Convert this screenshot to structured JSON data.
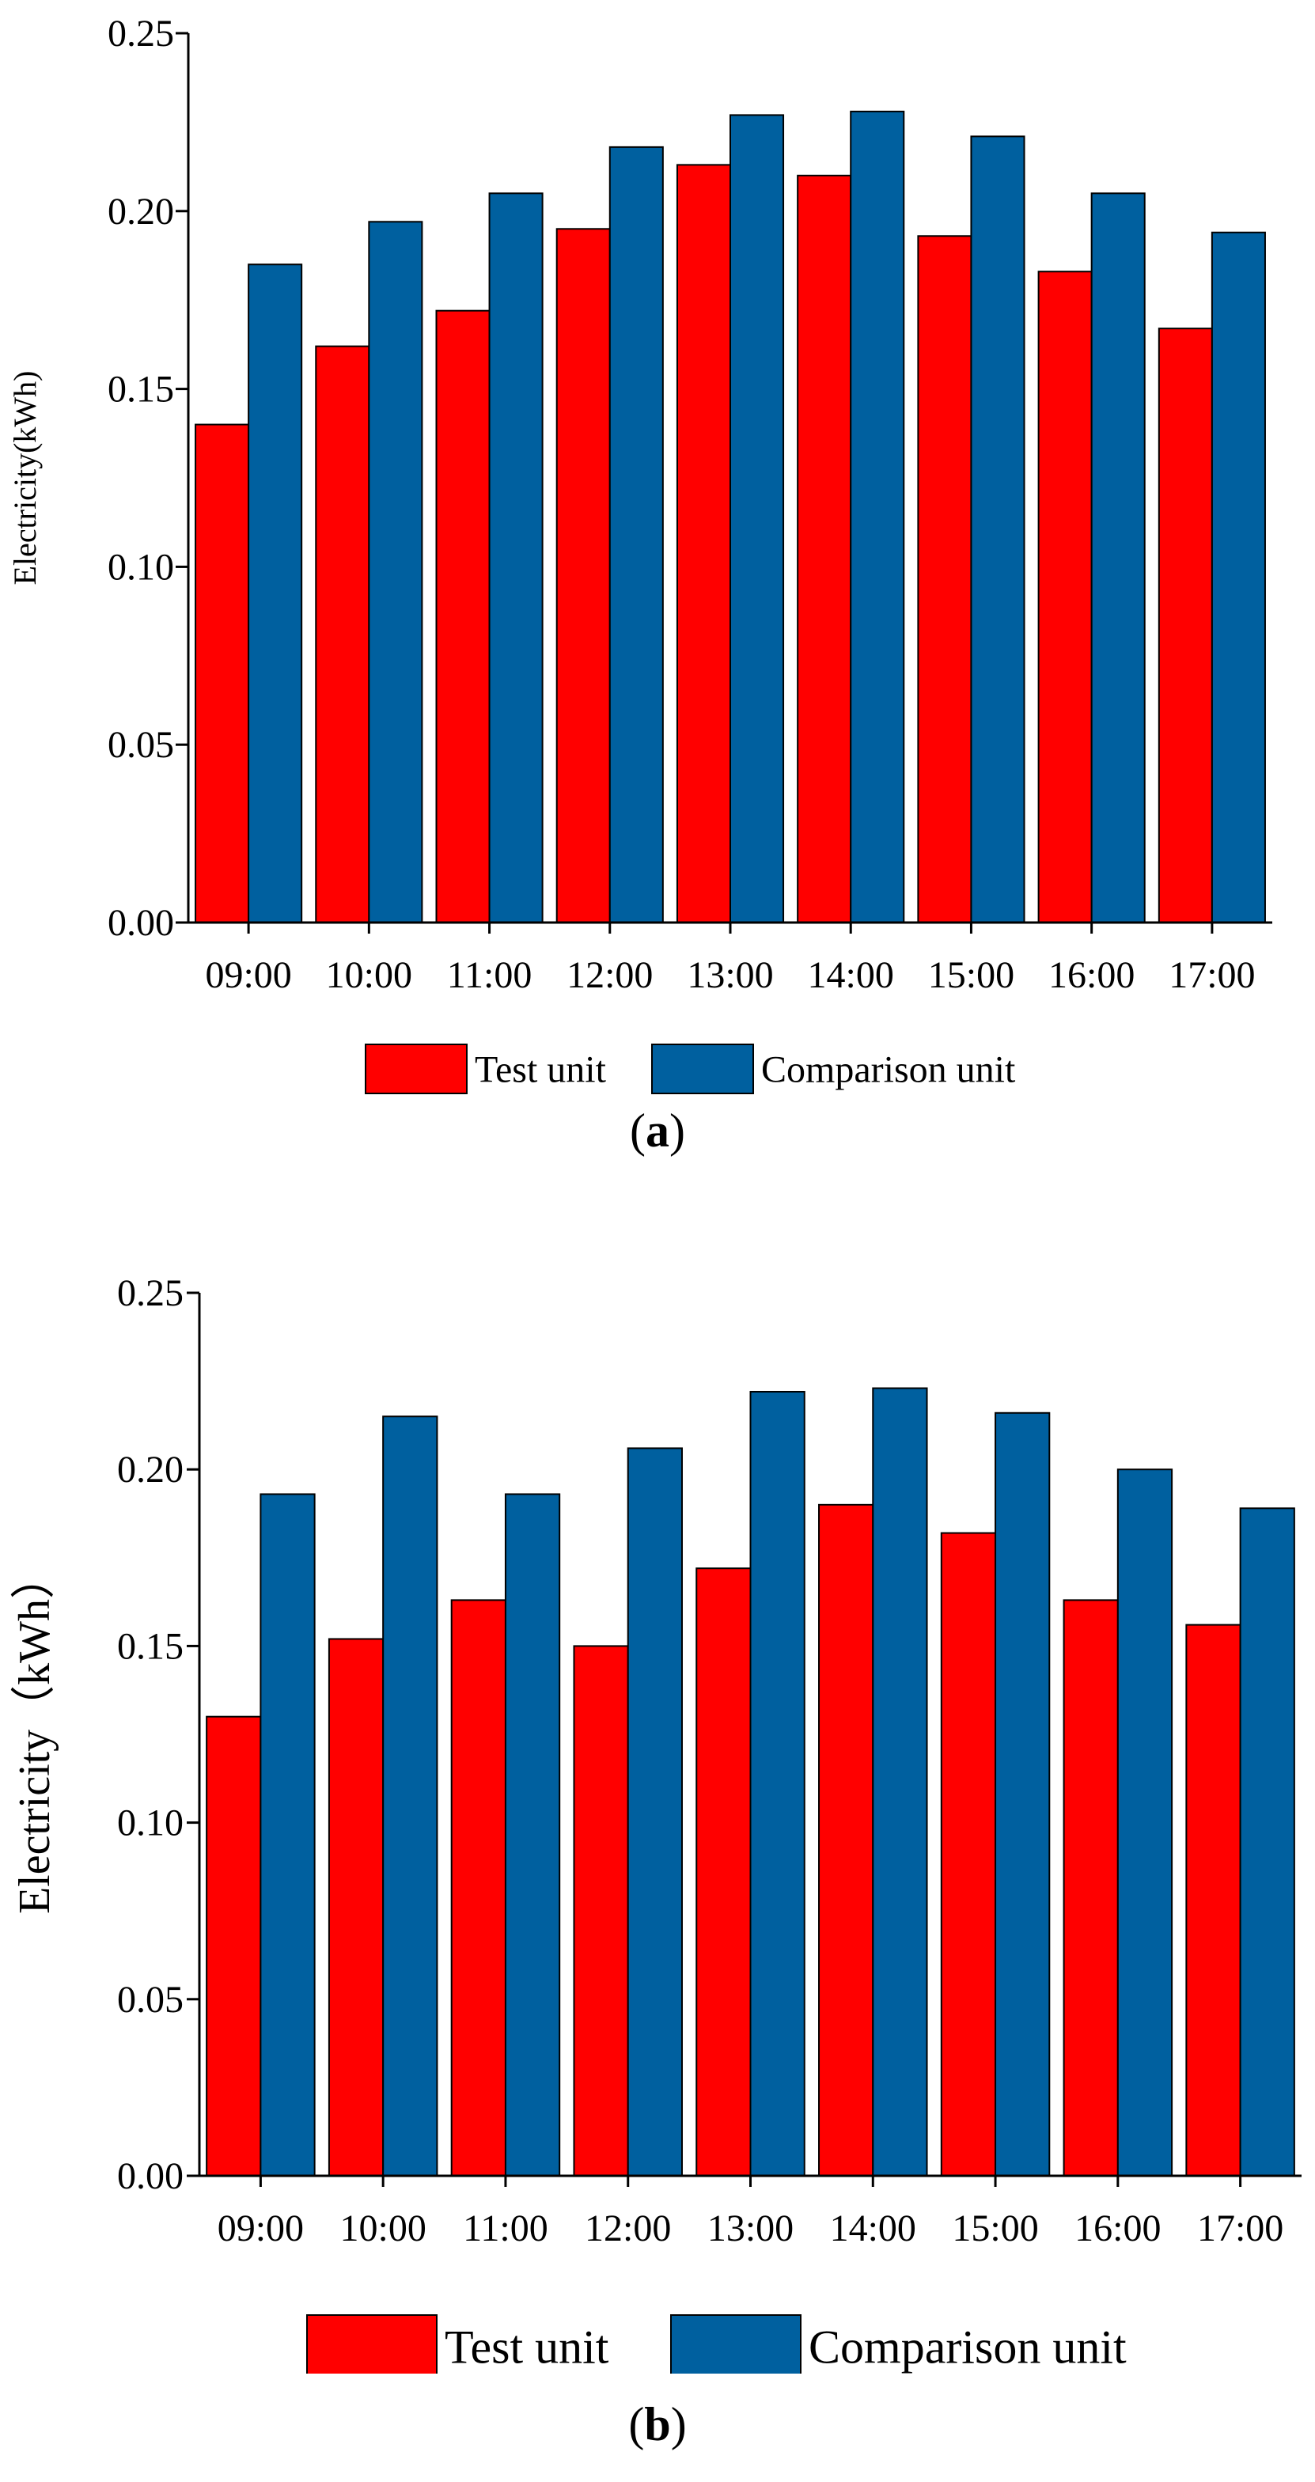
{
  "colors": {
    "test": "#ff0000",
    "comparison": "#00609f",
    "stroke": "#000000"
  },
  "chart_data": [
    {
      "type": "bar",
      "panel": "a",
      "caption_letter": "a",
      "categories": [
        "09:00",
        "10:00",
        "11:00",
        "12:00",
        "13:00",
        "14:00",
        "15:00",
        "16:00",
        "17:00"
      ],
      "series": [
        {
          "name": "Test unit",
          "values": [
            0.14,
            0.162,
            0.172,
            0.195,
            0.213,
            0.21,
            0.193,
            0.183,
            0.167
          ]
        },
        {
          "name": "Comparison unit",
          "values": [
            0.185,
            0.197,
            0.205,
            0.218,
            0.227,
            0.228,
            0.221,
            0.205,
            0.194
          ]
        }
      ],
      "ylabel": "Electricity(kWh)",
      "xlabel": "",
      "ylim": [
        0,
        0.25
      ],
      "yticks": [
        "0.00",
        "0.05",
        "0.10",
        "0.15",
        "0.20",
        "0.25"
      ],
      "legend_position": "bottom"
    },
    {
      "type": "bar",
      "panel": "b",
      "caption_letter": "b",
      "categories": [
        "09:00",
        "10:00",
        "11:00",
        "12:00",
        "13:00",
        "14:00",
        "15:00",
        "16:00",
        "17:00"
      ],
      "series": [
        {
          "name": "Test unit",
          "values": [
            0.13,
            0.152,
            0.163,
            0.15,
            0.172,
            0.19,
            0.182,
            0.163,
            0.156
          ]
        },
        {
          "name": "Comparison unit",
          "values": [
            0.193,
            0.215,
            0.193,
            0.206,
            0.222,
            0.223,
            0.216,
            0.2,
            0.189
          ]
        }
      ],
      "ylabel": "Electricity（kWh）",
      "xlabel": "",
      "ylim": [
        0,
        0.25
      ],
      "yticks": [
        "0.00",
        "0.05",
        "0.10",
        "0.15",
        "0.20",
        "0.25"
      ],
      "legend_position": "bottom"
    }
  ]
}
